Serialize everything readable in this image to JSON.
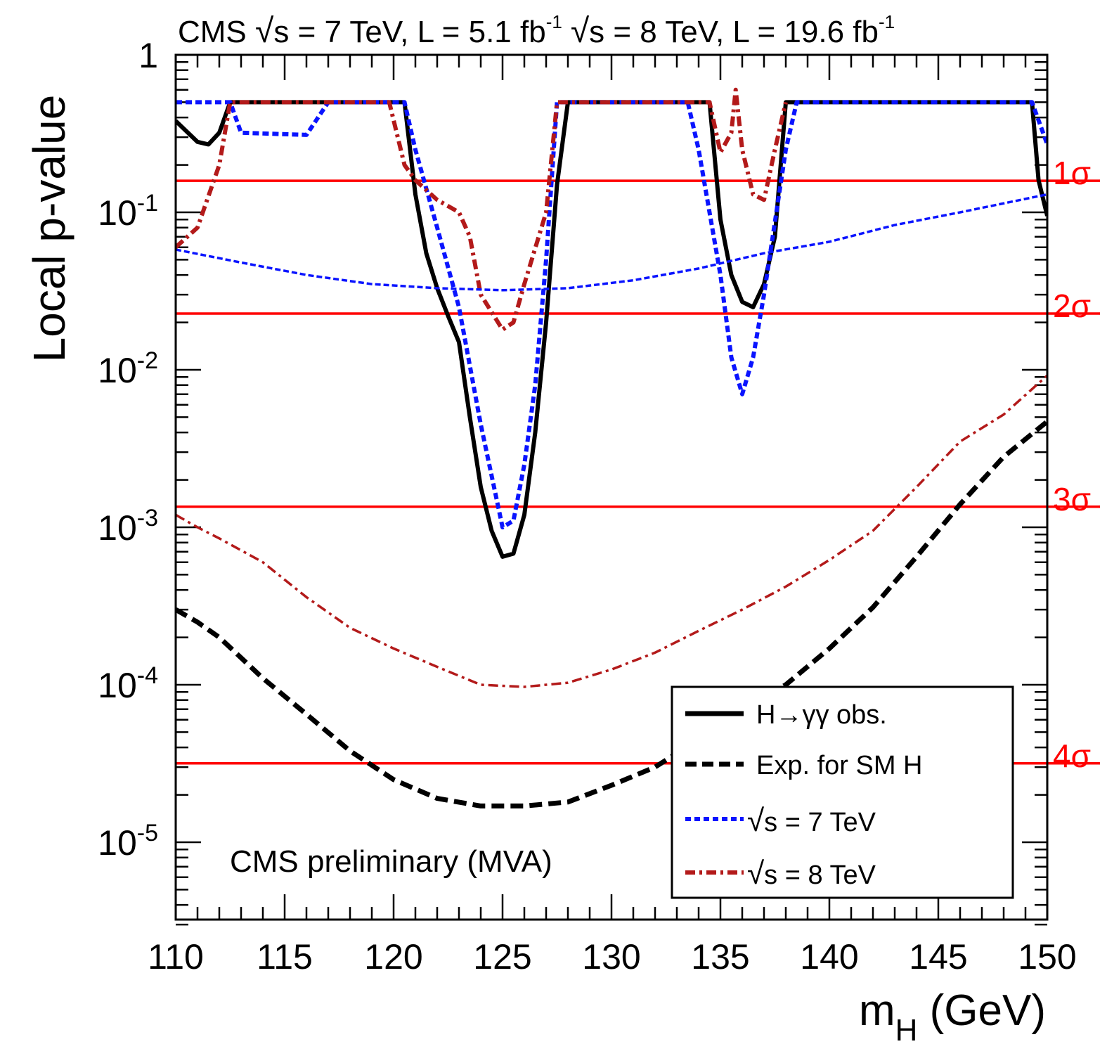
{
  "chart_data": {
    "type": "line",
    "title": {
      "prefix": "CMS ",
      "part1_a": "s = 7 TeV, L = 5.1 fb",
      "part1_sup": "-1",
      "part2_a": "s = 8 TeV, L = 19.6 fb",
      "part2_sup": "-1"
    },
    "annotation": "CMS preliminary (MVA)",
    "xlabel": {
      "main": "m",
      "sub": "H",
      "rest": " (GeV)"
    },
    "ylabel": "Local p-value",
    "xlim": [
      110,
      150
    ],
    "ylim": [
      3e-06,
      1
    ],
    "yscale": "log",
    "x_ticks": [
      110,
      115,
      120,
      125,
      130,
      135,
      140,
      145,
      150
    ],
    "y_ticks": [
      {
        "value": 1,
        "base": "1",
        "exp": ""
      },
      {
        "value": 0.1,
        "base": "10",
        "exp": "-1"
      },
      {
        "value": 0.01,
        "base": "10",
        "exp": "-2"
      },
      {
        "value": 0.001,
        "base": "10",
        "exp": "-3"
      },
      {
        "value": 0.0001,
        "base": "10",
        "exp": "-4"
      },
      {
        "value": 1e-05,
        "base": "10",
        "exp": "-5"
      }
    ],
    "sigma_lines": [
      {
        "label": "1σ",
        "p": 0.1587
      },
      {
        "label": "2σ",
        "p": 0.02275
      },
      {
        "label": "3σ",
        "p": 0.00135
      },
      {
        "label": "4σ",
        "p": 3.17e-05
      }
    ],
    "colors": {
      "obs": "#000000",
      "exp": "#000000",
      "s7": "#0a14ff",
      "s8": "#b31a1a",
      "sigma": "#ff0000"
    },
    "legend": {
      "placement": "bottom-right",
      "entries": [
        {
          "key": "obs",
          "label": "H→γγ obs."
        },
        {
          "key": "exp",
          "label": "Exp. for SM H"
        },
        {
          "key": "s7",
          "label": "s = 7 TeV"
        },
        {
          "key": "s8",
          "label": "s = 8 TeV"
        }
      ]
    },
    "series": [
      {
        "key": "obs",
        "name": "H→γγ obs.",
        "style": "solid",
        "width": 6,
        "points": [
          [
            110,
            0.38
          ],
          [
            111,
            0.28
          ],
          [
            111.5,
            0.27
          ],
          [
            112,
            0.32
          ],
          [
            112.5,
            0.5
          ],
          [
            120.5,
            0.5
          ],
          [
            121,
            0.13
          ],
          [
            121.5,
            0.055
          ],
          [
            122,
            0.033
          ],
          [
            122.5,
            0.022
          ],
          [
            123,
            0.015
          ],
          [
            123.5,
            0.005
          ],
          [
            124,
            0.0018
          ],
          [
            124.5,
            0.00095
          ],
          [
            125,
            0.00065
          ],
          [
            125.5,
            0.00068
          ],
          [
            126,
            0.0012
          ],
          [
            126.5,
            0.004
          ],
          [
            127,
            0.02
          ],
          [
            127.5,
            0.15
          ],
          [
            128,
            0.5
          ],
          [
            134.5,
            0.5
          ],
          [
            135,
            0.09
          ],
          [
            135.5,
            0.04
          ],
          [
            136,
            0.027
          ],
          [
            136.5,
            0.025
          ],
          [
            137,
            0.035
          ],
          [
            137.5,
            0.07
          ],
          [
            138,
            0.5
          ],
          [
            149.3,
            0.5
          ],
          [
            149.6,
            0.16
          ],
          [
            150,
            0.095
          ]
        ]
      },
      {
        "key": "s7",
        "name": "s = 7 TeV",
        "style": "dashed",
        "width": 6,
        "points": [
          [
            110,
            0.5
          ],
          [
            112.5,
            0.5
          ],
          [
            113,
            0.32
          ],
          [
            116,
            0.31
          ],
          [
            117,
            0.5
          ],
          [
            120.5,
            0.5
          ],
          [
            121,
            0.25
          ],
          [
            122,
            0.08
          ],
          [
            123,
            0.025
          ],
          [
            124,
            0.0045
          ],
          [
            125,
            0.001
          ],
          [
            125.5,
            0.0011
          ],
          [
            126,
            0.0025
          ],
          [
            126.5,
            0.008
          ],
          [
            127,
            0.05
          ],
          [
            127.5,
            0.5
          ],
          [
            133.5,
            0.5
          ],
          [
            134,
            0.25
          ],
          [
            135,
            0.04
          ],
          [
            135.5,
            0.012
          ],
          [
            136,
            0.007
          ],
          [
            136.5,
            0.012
          ],
          [
            137,
            0.03
          ],
          [
            138,
            0.25
          ],
          [
            138.5,
            0.5
          ],
          [
            149.3,
            0.5
          ],
          [
            150,
            0.27
          ]
        ]
      },
      {
        "key": "s8",
        "name": "s = 8 TeV",
        "style": "dashdot",
        "width": 6,
        "points": [
          [
            110,
            0.06
          ],
          [
            111,
            0.08
          ],
          [
            112,
            0.2
          ],
          [
            112.5,
            0.5
          ],
          [
            119.8,
            0.5
          ],
          [
            120.5,
            0.2
          ],
          [
            121,
            0.16
          ],
          [
            122,
            0.12
          ],
          [
            123,
            0.1
          ],
          [
            123.5,
            0.07
          ],
          [
            124,
            0.03
          ],
          [
            125,
            0.018
          ],
          [
            125.5,
            0.02
          ],
          [
            126,
            0.035
          ],
          [
            127,
            0.1
          ],
          [
            127.5,
            0.5
          ],
          [
            134.5,
            0.5
          ],
          [
            135,
            0.24
          ],
          [
            135.5,
            0.32
          ],
          [
            135.7,
            0.6
          ],
          [
            136,
            0.25
          ],
          [
            136.5,
            0.13
          ],
          [
            137,
            0.12
          ],
          [
            137.5,
            0.25
          ],
          [
            138,
            0.5
          ]
        ]
      },
      {
        "key": "s7exp",
        "name": "",
        "style": "dotted",
        "width": 3.5,
        "points": [
          [
            110,
            0.058
          ],
          [
            113,
            0.048
          ],
          [
            116,
            0.04
          ],
          [
            119,
            0.035
          ],
          [
            122,
            0.033
          ],
          [
            125,
            0.032
          ],
          [
            128,
            0.033
          ],
          [
            131,
            0.037
          ],
          [
            134,
            0.044
          ],
          [
            137,
            0.055
          ],
          [
            140,
            0.065
          ],
          [
            143,
            0.083
          ],
          [
            146,
            0.1
          ],
          [
            150,
            0.13
          ]
        ]
      },
      {
        "key": "s8exp",
        "name": "",
        "style": "dashdot",
        "width": 3.5,
        "points": [
          [
            110,
            0.0012
          ],
          [
            111,
            0.001
          ],
          [
            112,
            0.00085
          ],
          [
            114,
            0.0006
          ],
          [
            116,
            0.00036
          ],
          [
            118,
            0.00023
          ],
          [
            120,
            0.00017
          ],
          [
            122,
            0.00013
          ],
          [
            124,
            0.0001
          ],
          [
            126,
            9.7e-05
          ],
          [
            128,
            0.000103
          ],
          [
            130,
            0.000125
          ],
          [
            132,
            0.00016
          ],
          [
            134,
            0.00022
          ],
          [
            136,
            0.0003
          ],
          [
            138,
            0.00042
          ],
          [
            140,
            0.00062
          ],
          [
            142,
            0.00095
          ],
          [
            144,
            0.0018
          ],
          [
            146,
            0.0035
          ],
          [
            148,
            0.0052
          ],
          [
            150,
            0.0092
          ]
        ]
      },
      {
        "key": "exp",
        "name": "Exp. for SM H",
        "style": "dashed",
        "width": 7,
        "points": [
          [
            110,
            0.0003
          ],
          [
            111,
            0.00025
          ],
          [
            112,
            0.0002
          ],
          [
            114,
            0.00011
          ],
          [
            116,
            6.5e-05
          ],
          [
            118,
            3.8e-05
          ],
          [
            120,
            2.5e-05
          ],
          [
            122,
            1.9e-05
          ],
          [
            124,
            1.7e-05
          ],
          [
            126,
            1.7e-05
          ],
          [
            128,
            1.8e-05
          ],
          [
            130,
            2.3e-05
          ],
          [
            132,
            3e-05
          ],
          [
            134,
            4.5e-05
          ],
          [
            136,
            7e-05
          ],
          [
            138,
            0.0001
          ],
          [
            140,
            0.00017
          ],
          [
            142,
            0.00031
          ],
          [
            144,
            0.00065
          ],
          [
            146,
            0.0014
          ],
          [
            148,
            0.0028
          ],
          [
            150,
            0.0047
          ]
        ]
      }
    ]
  }
}
